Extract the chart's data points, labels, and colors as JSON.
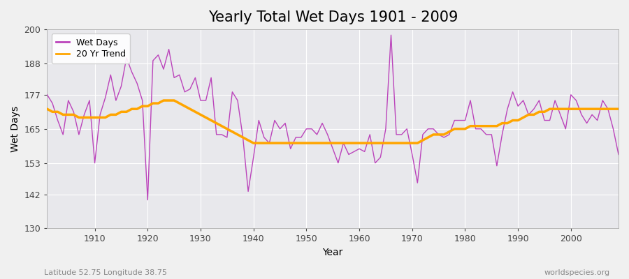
{
  "title": "Yearly Total Wet Days 1901 - 2009",
  "xlabel": "Year",
  "ylabel": "Wet Days",
  "subtitle_left": "Latitude 52.75 Longitude 38.75",
  "subtitle_right": "worldspecies.org",
  "line_color": "#BB44BB",
  "trend_color": "#FFA500",
  "bg_color": "#F0F0F0",
  "plot_bg_color": "#E8E8EC",
  "ylim": [
    130,
    200
  ],
  "yticks": [
    130,
    142,
    153,
    165,
    177,
    188,
    200
  ],
  "xlim": [
    1901,
    2009
  ],
  "xticks": [
    1910,
    1920,
    1930,
    1940,
    1950,
    1960,
    1970,
    1980,
    1990,
    2000
  ],
  "years": [
    1901,
    1902,
    1903,
    1904,
    1905,
    1906,
    1907,
    1908,
    1909,
    1910,
    1911,
    1912,
    1913,
    1914,
    1915,
    1916,
    1917,
    1918,
    1919,
    1920,
    1921,
    1922,
    1923,
    1924,
    1925,
    1926,
    1927,
    1928,
    1929,
    1930,
    1931,
    1932,
    1933,
    1934,
    1935,
    1936,
    1937,
    1938,
    1939,
    1940,
    1941,
    1942,
    1943,
    1944,
    1945,
    1946,
    1947,
    1948,
    1949,
    1950,
    1951,
    1952,
    1953,
    1954,
    1955,
    1956,
    1957,
    1958,
    1959,
    1960,
    1961,
    1962,
    1963,
    1964,
    1965,
    1966,
    1967,
    1968,
    1969,
    1970,
    1971,
    1972,
    1973,
    1974,
    1975,
    1976,
    1977,
    1978,
    1979,
    1980,
    1981,
    1982,
    1983,
    1984,
    1985,
    1986,
    1987,
    1988,
    1989,
    1990,
    1991,
    1992,
    1993,
    1994,
    1995,
    1996,
    1997,
    1998,
    1999,
    2000,
    2001,
    2002,
    2003,
    2004,
    2005,
    2006,
    2007,
    2008,
    2009
  ],
  "wet_days": [
    177,
    174,
    168,
    163,
    175,
    171,
    163,
    170,
    175,
    153,
    170,
    176,
    184,
    175,
    180,
    190,
    185,
    181,
    175,
    140,
    189,
    191,
    186,
    193,
    183,
    184,
    178,
    179,
    183,
    175,
    175,
    183,
    163,
    163,
    162,
    178,
    175,
    162,
    143,
    155,
    168,
    162,
    160,
    168,
    165,
    167,
    158,
    162,
    162,
    165,
    165,
    163,
    167,
    163,
    158,
    153,
    160,
    156,
    157,
    158,
    157,
    163,
    153,
    155,
    165,
    198,
    163,
    163,
    165,
    156,
    146,
    163,
    165,
    165,
    163,
    162,
    163,
    168,
    168,
    168,
    175,
    165,
    165,
    163,
    163,
    152,
    163,
    172,
    178,
    173,
    175,
    170,
    172,
    175,
    168,
    168,
    175,
    170,
    165,
    177,
    175,
    170,
    167,
    170,
    168,
    175,
    172,
    165,
    156
  ],
  "trend": [
    172,
    171,
    171,
    170,
    170,
    170,
    169,
    169,
    169,
    169,
    169,
    169,
    170,
    170,
    171,
    171,
    172,
    172,
    173,
    173,
    174,
    174,
    175,
    175,
    175,
    174,
    173,
    172,
    171,
    170,
    169,
    168,
    167,
    166,
    165,
    164,
    163,
    162,
    161,
    160,
    160,
    160,
    160,
    160,
    160,
    160,
    160,
    160,
    160,
    160,
    160,
    160,
    160,
    160,
    160,
    160,
    160,
    160,
    160,
    160,
    160,
    160,
    160,
    160,
    160,
    160,
    160,
    160,
    160,
    160,
    160,
    161,
    162,
    163,
    163,
    163,
    164,
    165,
    165,
    165,
    166,
    166,
    166,
    166,
    166,
    166,
    167,
    167,
    168,
    168,
    169,
    170,
    170,
    171,
    171,
    172,
    172,
    172,
    172,
    172,
    172,
    172,
    172,
    172,
    172,
    172,
    172,
    172,
    172
  ]
}
